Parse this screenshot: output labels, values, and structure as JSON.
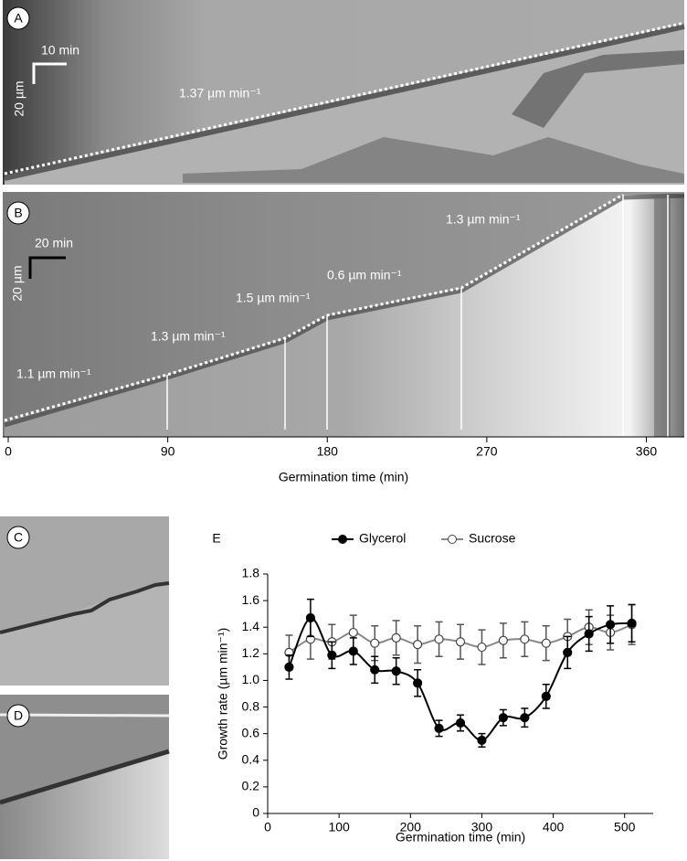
{
  "panels": {
    "A": {
      "label": "A",
      "scale_time": "10 min",
      "scale_length": "20 µm",
      "annotation": "1.37 µm min⁻¹"
    },
    "B": {
      "label": "B",
      "scale_time": "20 min",
      "scale_length": "20 µm",
      "annotations": [
        "1.3 µm min⁻¹",
        "0.6 µm min⁻¹",
        "1.5 µm min⁻¹",
        "1.3 µm min⁻¹",
        "1.1 µm min⁻¹"
      ],
      "x_label": "Germination time (min)",
      "xlim": [
        -3.1,
        381.4
      ],
      "xticks": [
        0,
        90,
        180,
        270,
        360
      ]
    },
    "C": {
      "label": "C"
    },
    "D": {
      "label": "D"
    }
  },
  "chart_data": {
    "type": "line",
    "label": "E",
    "x_label": "Germination time (min)",
    "y_label": "Growth rate (µm min⁻¹)",
    "xlim": [
      0,
      540
    ],
    "xticks": [
      0,
      100,
      200,
      300,
      400,
      500
    ],
    "ylim": [
      0,
      1.8
    ],
    "yticks": [
      0,
      0.2,
      0.4,
      0.6,
      0.8,
      {
        "value": 1,
        "label": "1.0"
      },
      1.2,
      1.4,
      1.6,
      1.8
    ],
    "x": [
      30,
      60,
      90,
      120,
      150,
      180,
      210,
      240,
      270,
      300,
      330,
      360,
      390,
      420,
      450,
      480,
      510
    ],
    "series": [
      {
        "name": "Glycerol",
        "color": "#000000",
        "values": [
          1.1,
          1.47,
          1.19,
          1.22,
          1.08,
          1.07,
          0.98,
          0.64,
          0.68,
          0.55,
          0.72,
          0.72,
          0.88,
          1.21,
          1.35,
          1.42,
          1.43
        ],
        "errors": [
          0.09,
          0.14,
          0.1,
          0.1,
          0.1,
          0.1,
          0.1,
          0.06,
          0.06,
          0.05,
          0.06,
          0.07,
          0.09,
          0.12,
          0.13,
          0.14,
          0.14
        ]
      },
      {
        "name": "Sucrose",
        "color": "#888888",
        "values": [
          1.21,
          1.31,
          1.29,
          1.36,
          1.28,
          1.32,
          1.27,
          1.31,
          1.29,
          1.25,
          1.3,
          1.31,
          1.28,
          1.33,
          1.4,
          1.36,
          1.42
        ],
        "errors": [
          0.13,
          0.15,
          0.13,
          0.13,
          0.13,
          0.13,
          0.14,
          0.13,
          0.13,
          0.13,
          0.13,
          0.13,
          0.13,
          0.13,
          0.13,
          0.13,
          0.15
        ]
      }
    ]
  }
}
